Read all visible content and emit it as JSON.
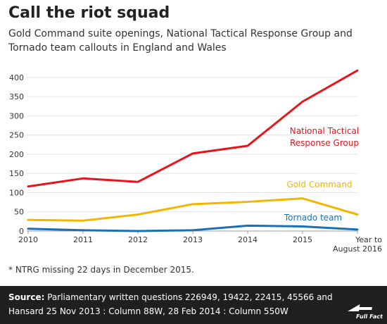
{
  "header": {
    "title": "Call the riot squad",
    "subtitle": "Gold Command suite openings, National Tactical Response Group and Tornado team callouts in England and Wales"
  },
  "footnote": "* NTRG missing 22 days in December 2015.",
  "footer": {
    "source_label": "Source:",
    "source_text": "Parliamentary written questions 226949, 19422, 22415, 45566 and Hansard 25 Nov 2013 : Column 88W, 28 Feb 2014 : Column 550W",
    "logo_text": "Full Fact"
  },
  "colors": {
    "ntrg": "#e8141c",
    "gold": "#f2b600",
    "tornado": "#1d6fb3",
    "footer_bg": "#1f1f1f"
  },
  "chart_data": {
    "type": "line",
    "categories": [
      "2010",
      "2011",
      "2012",
      "2013",
      "2014",
      "2015",
      "Year to August 2016"
    ],
    "category_labels": [
      [
        "2010"
      ],
      [
        "2011"
      ],
      [
        "2012"
      ],
      [
        "2013"
      ],
      [
        "2014"
      ],
      [
        "2015"
      ],
      [
        "Year to",
        "August 2016"
      ]
    ],
    "series": [
      {
        "name": "National Tactical Response Group",
        "label_lines": [
          "National Tactical",
          "Response Group"
        ],
        "color": "#e8141c",
        "values": [
          116,
          137,
          128,
          202,
          222,
          337,
          418
        ]
      },
      {
        "name": "Gold Command",
        "label_lines": [
          "Gold Command"
        ],
        "color": "#f2b600",
        "values": [
          29,
          27,
          43,
          70,
          76,
          85,
          43
        ]
      },
      {
        "name": "Tornado team",
        "label_lines": [
          "Tornado team"
        ],
        "color": "#1d6fb3",
        "values": [
          6,
          2,
          0,
          2,
          14,
          12,
          4
        ]
      }
    ],
    "ylim": [
      0,
      420
    ],
    "yticks": [
      0,
      50,
      100,
      150,
      200,
      250,
      300,
      350,
      400
    ],
    "grid": true
  }
}
